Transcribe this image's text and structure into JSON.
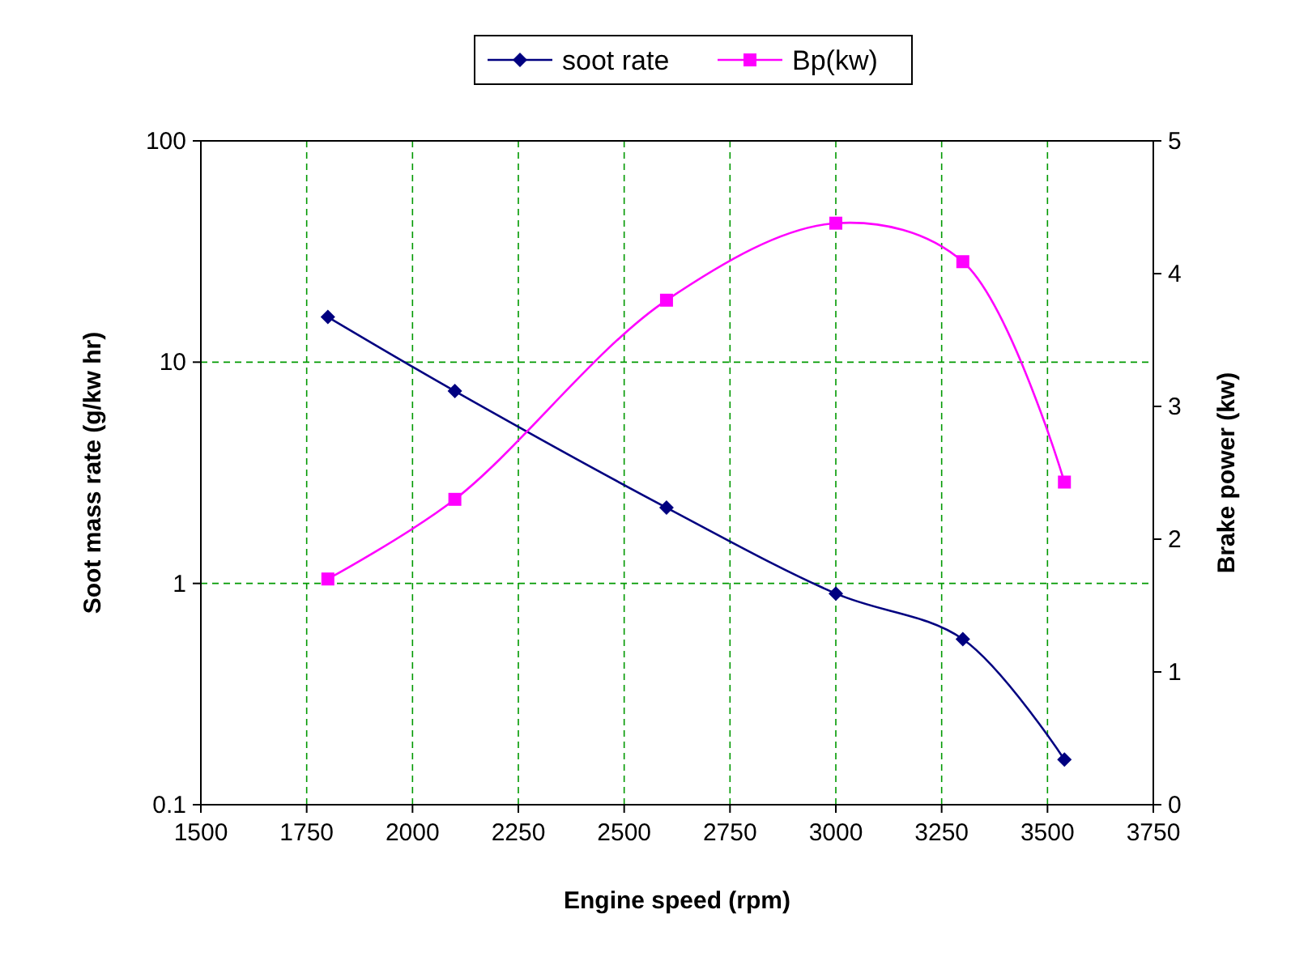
{
  "chart_data": {
    "type": "line",
    "xlabel": "Engine speed (rpm)",
    "ylabel": "Soot mass rate (g/kw hr)",
    "y2label": "Brake power (kw)",
    "x": [
      1800,
      2100,
      2600,
      3000,
      3300,
      3540
    ],
    "series": [
      {
        "name": "soot rate",
        "color": "#000080",
        "marker": "diamond",
        "values": [
          16,
          7.4,
          2.2,
          0.9,
          0.56,
          0.16
        ]
      },
      {
        "name": "Bp(kw)",
        "color": "#ff00ff",
        "marker": "square",
        "axis": "y2",
        "values": [
          1.7,
          2.3,
          3.8,
          4.38,
          4.09,
          2.43
        ]
      }
    ],
    "xlim": [
      1500,
      3750
    ],
    "xticks": [
      1500,
      1750,
      2000,
      2250,
      2500,
      2750,
      3000,
      3250,
      3500,
      3750
    ],
    "ylim": [
      0.1,
      100
    ],
    "yticks": [
      0.1,
      1,
      10,
      100
    ],
    "log": "y",
    "y2lim": [
      0,
      5
    ],
    "y2ticks": [
      0,
      1,
      2,
      3,
      4,
      5
    ],
    "grid": true,
    "legend": "top",
    "line_style": "solid"
  }
}
